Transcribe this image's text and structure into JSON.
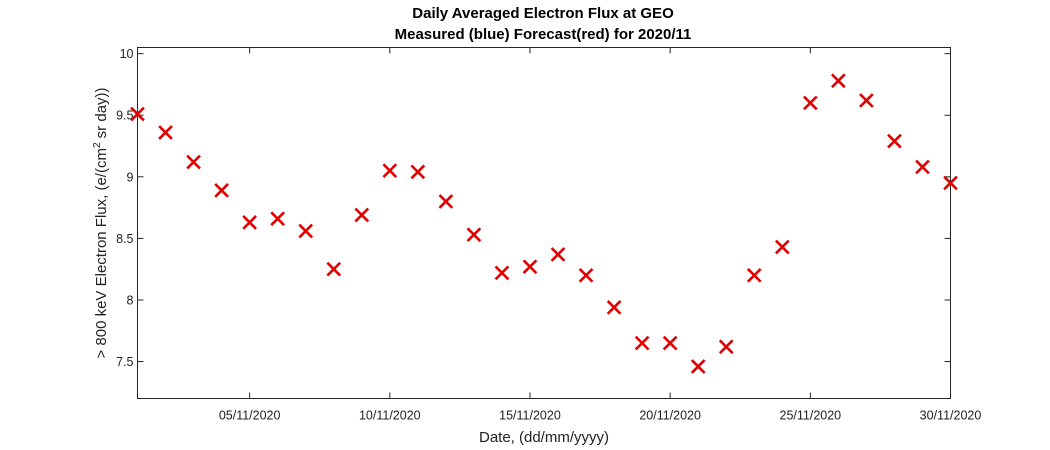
{
  "chart_data": {
    "type": "scatter",
    "title": "Daily Averaged Electron Flux at GEO",
    "subtitle": "Measured (blue) Forecast(red) for 2020/11",
    "xlabel": "Date, (dd/mm/yyyy)",
    "ylabel": "> 800 keV Electron Flux, (e/(cm",
    "ylabel_sup": "2",
    "ylabel_tail": " sr day))",
    "xlim": [
      "01/11/2020",
      "30/11/2020"
    ],
    "ylim": [
      7.2,
      10.05
    ],
    "x_ticks": [
      "05/11/2020",
      "10/11/2020",
      "15/11/2020",
      "20/11/2020",
      "25/11/2020",
      "30/11/2020"
    ],
    "y_ticks": [
      "7.5",
      "8",
      "8.5",
      "9",
      "9.5",
      "10"
    ],
    "marker": "x",
    "marker_color": "#e00000",
    "grid": false,
    "series": [
      {
        "x": [
          "01/11/2020",
          "02/11/2020",
          "03/11/2020",
          "04/11/2020",
          "05/11/2020",
          "06/11/2020",
          "07/11/2020",
          "08/11/2020",
          "09/11/2020",
          "10/11/2020",
          "11/11/2020",
          "12/11/2020",
          "13/11/2020",
          "14/11/2020",
          "15/11/2020",
          "16/11/2020",
          "17/11/2020",
          "18/11/2020",
          "19/11/2020",
          "20/11/2020",
          "21/11/2020",
          "22/11/2020",
          "23/11/2020",
          "24/11/2020",
          "25/11/2020",
          "26/11/2020",
          "27/11/2020",
          "28/11/2020",
          "29/11/2020",
          "30/11/2020"
        ],
        "y": [
          9.51,
          9.36,
          9.12,
          8.89,
          8.63,
          8.66,
          8.56,
          8.25,
          8.69,
          9.05,
          9.04,
          8.8,
          8.53,
          8.22,
          8.27,
          8.37,
          8.2,
          7.94,
          7.65,
          7.65,
          7.46,
          7.62,
          8.2,
          8.43,
          9.6,
          9.78,
          9.62,
          9.29,
          9.08,
          8.95
        ]
      }
    ]
  }
}
